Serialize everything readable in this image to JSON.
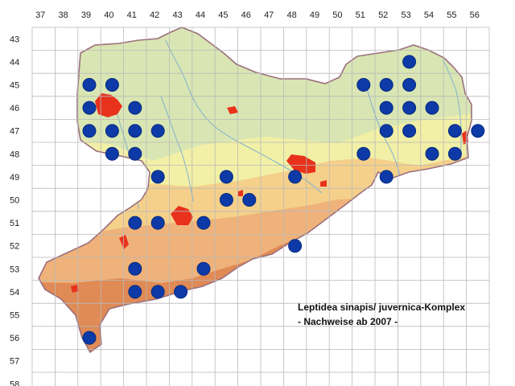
{
  "map": {
    "title_line1": "Leptidea sinapis/ juvernica-Komplex",
    "title_line2": "- Nachweise ab 2007 -",
    "x_labels": [
      "37",
      "38",
      "39",
      "40",
      "41",
      "42",
      "43",
      "44",
      "45",
      "46",
      "47",
      "48",
      "49",
      "50",
      "51",
      "52",
      "53",
      "54",
      "55",
      "56"
    ],
    "y_labels": [
      "43",
      "44",
      "45",
      "46",
      "47",
      "48",
      "49",
      "50",
      "51",
      "52",
      "53",
      "54",
      "55",
      "56",
      "57",
      "58"
    ],
    "colors": {
      "lowland": "#d9e6b3",
      "low_hills": "#f1f0a6",
      "mid_hills": "#f5d08a",
      "uplands": "#efb27a",
      "mountains": "#e08a55",
      "cities": "#e8321c",
      "records": "#0d3aa6",
      "border": "#9b6f7c"
    },
    "records": [
      {
        "col": "53",
        "row": "44"
      },
      {
        "col": "39",
        "row": "45"
      },
      {
        "col": "40",
        "row": "45"
      },
      {
        "col": "51",
        "row": "45"
      },
      {
        "col": "52",
        "row": "45"
      },
      {
        "col": "53",
        "row": "45"
      },
      {
        "col": "39",
        "row": "46"
      },
      {
        "col": "41",
        "row": "46"
      },
      {
        "col": "52",
        "row": "46"
      },
      {
        "col": "53",
        "row": "46"
      },
      {
        "col": "54",
        "row": "46"
      },
      {
        "col": "39",
        "row": "47"
      },
      {
        "col": "40",
        "row": "47"
      },
      {
        "col": "41",
        "row": "47"
      },
      {
        "col": "42",
        "row": "47"
      },
      {
        "col": "52",
        "row": "47"
      },
      {
        "col": "53",
        "row": "47"
      },
      {
        "col": "55",
        "row": "47"
      },
      {
        "col": "56",
        "row": "47"
      },
      {
        "col": "40",
        "row": "48"
      },
      {
        "col": "41",
        "row": "48"
      },
      {
        "col": "51",
        "row": "48"
      },
      {
        "col": "54",
        "row": "48"
      },
      {
        "col": "55",
        "row": "48"
      },
      {
        "col": "42",
        "row": "49"
      },
      {
        "col": "45",
        "row": "49"
      },
      {
        "col": "48",
        "row": "49"
      },
      {
        "col": "52",
        "row": "49"
      },
      {
        "col": "45",
        "row": "50"
      },
      {
        "col": "46",
        "row": "50"
      },
      {
        "col": "41",
        "row": "51"
      },
      {
        "col": "42",
        "row": "51"
      },
      {
        "col": "44",
        "row": "51"
      },
      {
        "col": "48",
        "row": "52"
      },
      {
        "col": "41",
        "row": "53"
      },
      {
        "col": "44",
        "row": "53"
      },
      {
        "col": "41",
        "row": "54"
      },
      {
        "col": "42",
        "row": "54"
      },
      {
        "col": "43",
        "row": "54"
      },
      {
        "col": "39",
        "row": "56"
      }
    ]
  }
}
